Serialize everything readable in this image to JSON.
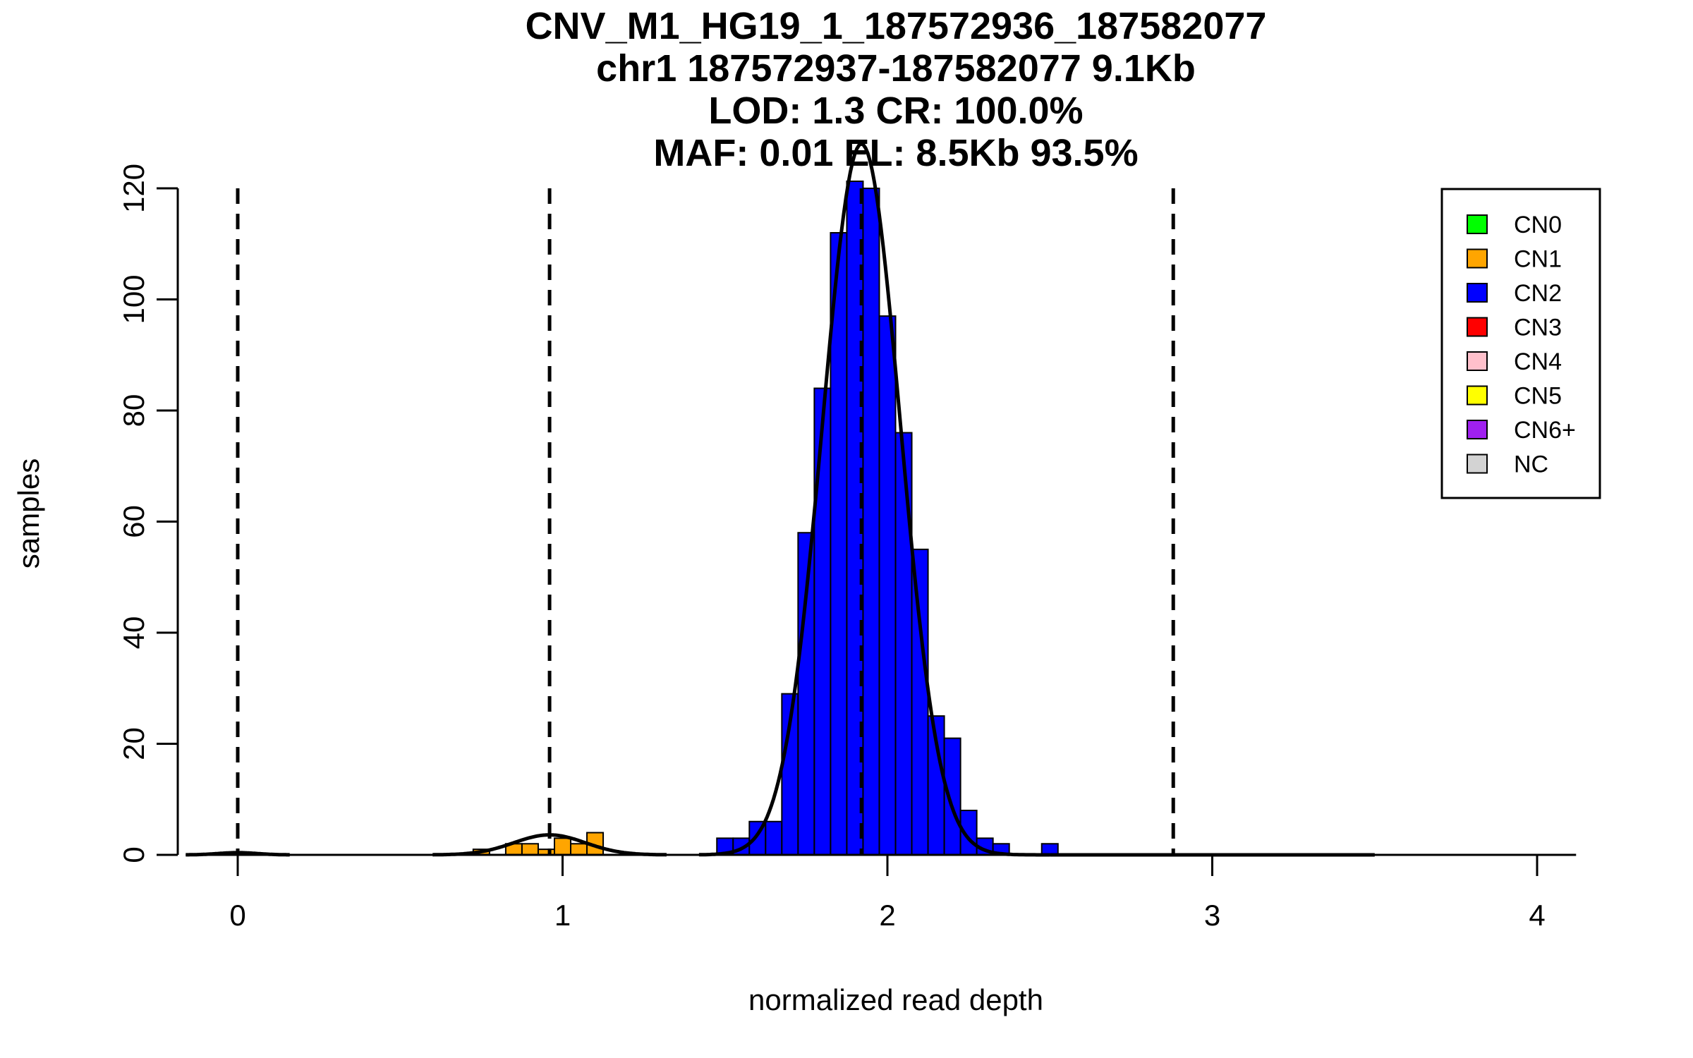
{
  "chart_data": {
    "type": "bar",
    "title": [
      "CNV_M1_HG19_1_187572936_187582077",
      "chr1 187572937-187582077 9.1Kb",
      "LOD: 1.3 CR: 100.0%",
      "MAF: 0.01 EL: 8.5Kb 93.5%"
    ],
    "xlabel": "normalized read depth",
    "ylabel": "samples",
    "xlim": [
      -0.16,
      4.12
    ],
    "ylim": [
      0,
      120
    ],
    "xticks": [
      0,
      1,
      2,
      3,
      4
    ],
    "yticks": [
      0,
      20,
      40,
      60,
      80,
      100,
      120
    ],
    "bin_width": 0.05,
    "series": [
      {
        "name": "CN0",
        "color": "#00ff00",
        "bins": [
          {
            "x0": -0.025,
            "x1": 0.025,
            "count": 0
          }
        ]
      },
      {
        "name": "CN1",
        "color": "#ffa500",
        "bins": [
          {
            "x0": 0.725,
            "x1": 0.775,
            "count": 1
          },
          {
            "x0": 0.775,
            "x1": 0.825,
            "count": 0
          },
          {
            "x0": 0.825,
            "x1": 0.875,
            "count": 2
          },
          {
            "x0": 0.875,
            "x1": 0.925,
            "count": 2
          },
          {
            "x0": 0.925,
            "x1": 0.975,
            "count": 1
          },
          {
            "x0": 0.975,
            "x1": 1.025,
            "count": 3
          },
          {
            "x0": 1.025,
            "x1": 1.075,
            "count": 2
          },
          {
            "x0": 1.075,
            "x1": 1.125,
            "count": 4
          }
        ]
      },
      {
        "name": "CN2",
        "color": "#0000ff",
        "bins": [
          {
            "x0": 1.475,
            "x1": 1.525,
            "count": 3
          },
          {
            "x0": 1.525,
            "x1": 1.575,
            "count": 3
          },
          {
            "x0": 1.575,
            "x1": 1.625,
            "count": 6
          },
          {
            "x0": 1.625,
            "x1": 1.675,
            "count": 6
          },
          {
            "x0": 1.675,
            "x1": 1.725,
            "count": 29
          },
          {
            "x0": 1.725,
            "x1": 1.775,
            "count": 58
          },
          {
            "x0": 1.775,
            "x1": 1.825,
            "count": 84
          },
          {
            "x0": 1.825,
            "x1": 1.875,
            "count": 112
          },
          {
            "x0": 1.875,
            "x1": 1.925,
            "count": 122
          },
          {
            "x0": 1.925,
            "x1": 1.975,
            "count": 120
          },
          {
            "x0": 1.975,
            "x1": 2.025,
            "count": 97
          },
          {
            "x0": 2.025,
            "x1": 2.075,
            "count": 76
          },
          {
            "x0": 2.075,
            "x1": 2.125,
            "count": 55
          },
          {
            "x0": 2.125,
            "x1": 2.175,
            "count": 25
          },
          {
            "x0": 2.175,
            "x1": 2.225,
            "count": 21
          },
          {
            "x0": 2.225,
            "x1": 2.275,
            "count": 8
          },
          {
            "x0": 2.275,
            "x1": 2.325,
            "count": 3
          },
          {
            "x0": 2.325,
            "x1": 2.375,
            "count": 2
          },
          {
            "x0": 2.475,
            "x1": 2.525,
            "count": 2
          }
        ]
      }
    ],
    "fit_curves": [
      {
        "name": "CN0",
        "mean": 0.0,
        "sd": 0.06,
        "peak": 0.4,
        "range": [
          -0.16,
          0.16
        ]
      },
      {
        "name": "CN1",
        "mean": 0.96,
        "sd": 0.11,
        "peak": 3.6,
        "range": [
          0.6,
          1.32
        ]
      },
      {
        "name": "CN2",
        "mean": 1.92,
        "sd": 0.12,
        "peak": 128,
        "range": [
          1.42,
          2.5
        ]
      },
      {
        "name": "CN3",
        "mean": 2.88,
        "sd": 0.14,
        "peak": 0.0,
        "range": [
          2.5,
          3.5
        ]
      }
    ],
    "vlines": [
      0.0,
      0.96,
      1.92,
      2.88
    ],
    "legend": {
      "position": "top-right",
      "entries": [
        {
          "label": "CN0",
          "color": "#00ff00"
        },
        {
          "label": "CN1",
          "color": "#ffa500"
        },
        {
          "label": "CN2",
          "color": "#0000ff"
        },
        {
          "label": "CN3",
          "color": "#ff0000"
        },
        {
          "label": "CN4",
          "color": "#ffc0cb"
        },
        {
          "label": "CN5",
          "color": "#ffff00"
        },
        {
          "label": "CN6+",
          "color": "#a020f0"
        },
        {
          "label": "NC",
          "color": "#d3d3d3"
        }
      ]
    }
  }
}
